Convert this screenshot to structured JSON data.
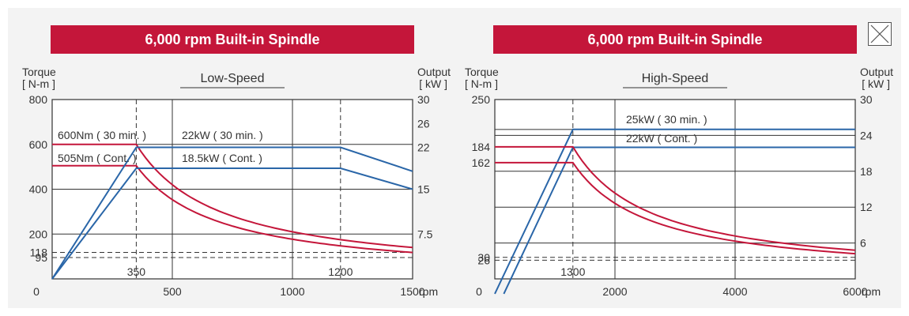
{
  "close_button_label": "close",
  "colors": {
    "torque": "#c4163a",
    "output": "#2a66a8",
    "banner": "#c4163a"
  },
  "chart_data": [
    {
      "type": "line",
      "title": "6,000 rpm Built-in Spindle",
      "subtitle": "Low-Speed",
      "ylabel_left": [
        "Torque",
        "[ N-m ]"
      ],
      "ylabel_right": [
        "Output",
        "[ kW ]"
      ],
      "xunit": "rpm",
      "xlim": [
        0,
        1500
      ],
      "ylim_left": [
        0,
        800
      ],
      "ylim_right": [
        0,
        30
      ],
      "x_ticks": [
        {
          "value": 0,
          "label": "0"
        },
        {
          "value": 500,
          "label": "500"
        },
        {
          "value": 1000,
          "label": "1000"
        },
        {
          "value": 1500,
          "label": "1500"
        }
      ],
      "x_ref_ticks": [
        {
          "value": 350,
          "label": "350"
        },
        {
          "value": 1200,
          "label": "1200"
        }
      ],
      "left_ticks": [
        {
          "value": 800,
          "label": "800"
        },
        {
          "value": 600,
          "label": "600"
        },
        {
          "value": 400,
          "label": "400"
        },
        {
          "value": 200,
          "label": "200"
        },
        {
          "value": 118,
          "label": "118"
        },
        {
          "value": 95,
          "label": "95"
        }
      ],
      "right_ticks": [
        {
          "value": 30,
          "label": "30"
        },
        {
          "value": 26,
          "label": "26"
        },
        {
          "value": 22,
          "label": "22"
        },
        {
          "value": 15,
          "label": "15"
        },
        {
          "value": 7.5,
          "label": "7.5"
        }
      ],
      "grid_x": [
        500,
        1000
      ],
      "grid_y_left": [
        600,
        400,
        200
      ],
      "dashed_y_left": [
        118,
        95
      ],
      "dashed_x": [
        350,
        1200
      ],
      "series": [
        {
          "name": "600Nm ( 30 min. )",
          "axis": "left",
          "kind": "torque",
          "rated_torque": 600,
          "base_rpm": 350,
          "max_rpm": 1500
        },
        {
          "name": "505Nm ( Cont. )",
          "axis": "left",
          "kind": "torque",
          "rated_torque": 505,
          "base_rpm": 350,
          "max_rpm": 1500
        },
        {
          "name": "22kW ( 30 min. )",
          "axis": "right",
          "kind": "output",
          "points": [
            [
              0,
              0
            ],
            [
              350,
              22
            ],
            [
              1200,
              22
            ],
            [
              1500,
              18
            ]
          ]
        },
        {
          "name": "18.5kW ( Cont. )",
          "axis": "right",
          "kind": "output",
          "points": [
            [
              0,
              0
            ],
            [
              350,
              18.5
            ],
            [
              1200,
              18.5
            ],
            [
              1500,
              15
            ]
          ]
        }
      ]
    },
    {
      "type": "line",
      "title": "6,000 rpm Built-in Spindle",
      "subtitle": "High-Speed",
      "ylabel_left": [
        "Torque",
        "[ N-m ]"
      ],
      "ylabel_right": [
        "Output",
        "[ kW ]"
      ],
      "xunit": "rpm",
      "xlim": [
        0,
        6000
      ],
      "ylim_left": [
        0,
        250
      ],
      "ylim_right": [
        0,
        30
      ],
      "x_ticks": [
        {
          "value": 0,
          "label": "0"
        },
        {
          "value": 2000,
          "label": "2000"
        },
        {
          "value": 4000,
          "label": "4000"
        },
        {
          "value": 6000,
          "label": "6000"
        }
      ],
      "x_ref_ticks": [
        {
          "value": 1300,
          "label": "1300"
        }
      ],
      "left_ticks": [
        {
          "value": 250,
          "label": "250"
        },
        {
          "value": 184,
          "label": "184"
        },
        {
          "value": 162,
          "label": "162"
        },
        {
          "value": 30,
          "label": "30"
        },
        {
          "value": 26,
          "label": "26"
        }
      ],
      "right_ticks": [
        {
          "value": 30,
          "label": "30"
        },
        {
          "value": 24,
          "label": "24"
        },
        {
          "value": 18,
          "label": "18"
        },
        {
          "value": 12,
          "label": "12"
        },
        {
          "value": 6,
          "label": "6"
        }
      ],
      "grid_x": [
        2000,
        4000
      ],
      "grid_y_right": [
        25,
        24,
        18,
        12,
        6
      ],
      "dashed_y_left": [
        30,
        26
      ],
      "dashed_x": [
        1300
      ],
      "series": [
        {
          "name": "25kW ( 30 min. )",
          "axis": "right",
          "kind": "output",
          "points": [
            [
              0,
              -2.5
            ],
            [
              1300,
              25
            ],
            [
              6000,
              25
            ]
          ]
        },
        {
          "name": "22kW ( Cont. )",
          "axis": "right",
          "kind": "output",
          "points": [
            [
              150,
              -2.5
            ],
            [
              1300,
              22
            ],
            [
              6000,
              22
            ]
          ]
        },
        {
          "name": "184 N-m",
          "axis": "left",
          "kind": "torque",
          "rated_torque": 184,
          "base_rpm": 1300,
          "max_rpm": 6000
        },
        {
          "name": "162 N-m",
          "axis": "left",
          "kind": "torque",
          "rated_torque": 162,
          "base_rpm": 1300,
          "max_rpm": 6000
        }
      ]
    }
  ]
}
